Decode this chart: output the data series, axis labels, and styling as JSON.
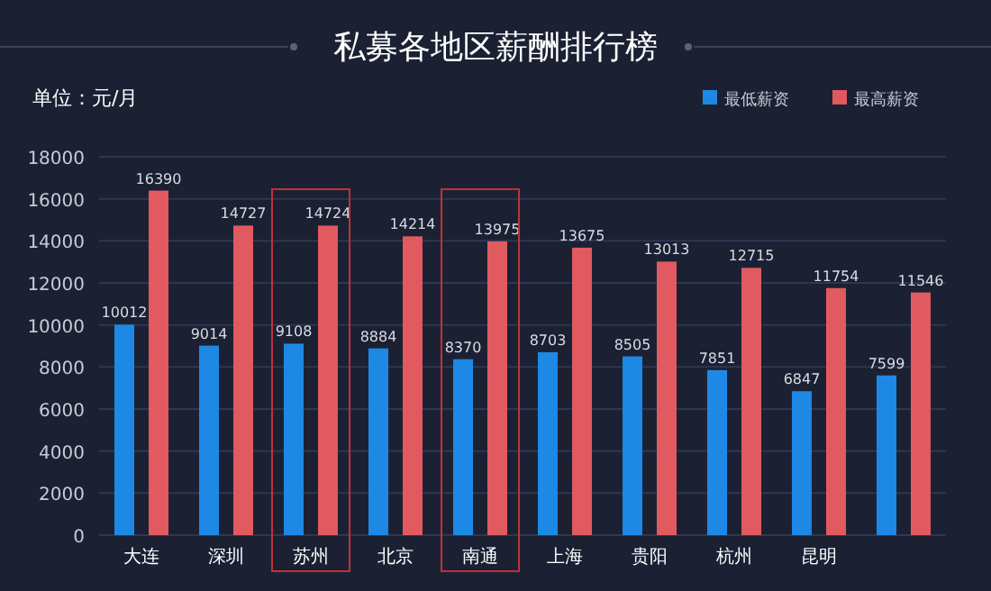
{
  "chart_data": {
    "type": "bar",
    "title": "私募各地区薪酬排行榜",
    "ylabel": "单位：元/月",
    "categories": [
      "大连",
      "深圳",
      "苏州",
      "北京",
      "南通",
      "上海",
      "贵阳",
      "杭州",
      "昆明",
      null
    ],
    "series": [
      {
        "name": "最低薪资",
        "color": "#1e88e5",
        "values": [
          10012,
          9014,
          9108,
          8884,
          8370,
          8703,
          8505,
          7851,
          6847,
          7599
        ]
      },
      {
        "name": "最高薪资",
        "color": "#e05a5f",
        "values": [
          16390,
          14727,
          14724,
          14214,
          13975,
          13675,
          13013,
          12715,
          11754,
          11546
        ]
      }
    ],
    "ylim": [
      0,
      18000
    ],
    "yticks": [
      0,
      2000,
      4000,
      6000,
      8000,
      10000,
      12000,
      14000,
      16000,
      18000
    ],
    "grid": "y",
    "legend": "top right",
    "data_labels": true
  }
}
